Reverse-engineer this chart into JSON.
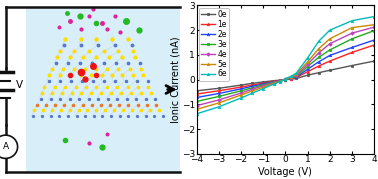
{
  "xlabel": "Voltage (V)",
  "ylabel": "Ionic Current (nA)",
  "xlim": [
    -4,
    4
  ],
  "ylim": [
    -3,
    3
  ],
  "xticks": [
    -4,
    -3,
    -2,
    -1,
    0,
    1,
    2,
    3,
    4
  ],
  "yticks": [
    -3,
    -2,
    -1,
    0,
    1,
    2,
    3
  ],
  "voltage": [
    -4,
    -3,
    -2,
    -1.5,
    -1,
    -0.5,
    -0.25,
    0,
    0.25,
    0.5,
    1,
    1.5,
    2,
    3,
    4
  ],
  "series": {
    "0e": {
      "color": "#555555",
      "marker": "o",
      "values": [
        -0.45,
        -0.35,
        -0.22,
        -0.15,
        -0.09,
        -0.04,
        -0.02,
        0.0,
        0.02,
        0.05,
        0.18,
        0.28,
        0.38,
        0.57,
        0.75
      ]
    },
    "1e": {
      "color": "#ff2222",
      "marker": "^",
      "values": [
        -0.58,
        -0.45,
        -0.3,
        -0.22,
        -0.14,
        -0.06,
        -0.03,
        0.0,
        0.04,
        0.09,
        0.32,
        0.55,
        0.75,
        1.1,
        1.4
      ]
    },
    "2e": {
      "color": "#2244ff",
      "marker": "^",
      "values": [
        -0.72,
        -0.56,
        -0.37,
        -0.27,
        -0.17,
        -0.08,
        -0.04,
        0.0,
        0.05,
        0.11,
        0.42,
        0.72,
        0.98,
        1.3,
        1.6
      ]
    },
    "3e": {
      "color": "#22aa22",
      "marker": "s",
      "values": [
        -0.88,
        -0.68,
        -0.45,
        -0.33,
        -0.21,
        -0.1,
        -0.05,
        0.0,
        0.06,
        0.14,
        0.53,
        0.9,
        1.2,
        1.65,
        1.98
      ]
    },
    "4e": {
      "color": "#bb44bb",
      "marker": "D",
      "values": [
        -1.05,
        -0.82,
        -0.54,
        -0.39,
        -0.25,
        -0.12,
        -0.06,
        0.02,
        0.08,
        0.18,
        0.62,
        1.08,
        1.45,
        1.88,
        2.12
      ]
    },
    "5e": {
      "color": "#cc8800",
      "marker": "^",
      "values": [
        -1.2,
        -0.94,
        -0.62,
        -0.46,
        -0.3,
        -0.14,
        -0.07,
        0.03,
        0.1,
        0.22,
        0.72,
        1.25,
        1.65,
        2.1,
        2.22
      ]
    },
    "6e": {
      "color": "#00bbbb",
      "marker": "^",
      "values": [
        -1.38,
        -1.1,
        -0.74,
        -0.55,
        -0.36,
        -0.17,
        -0.08,
        0.04,
        0.13,
        0.27,
        0.88,
        1.55,
        2.0,
        2.38,
        2.55
      ]
    }
  },
  "bg_color": "#daeef8",
  "wire_color": "#111111",
  "crystal_yellow": "#ffdd00",
  "crystal_blue": "#4466cc",
  "crystal_orange": "#ee7700",
  "ion_pink": "#dd2288",
  "ion_green": "#22bb22",
  "ion_red": "#ee1111"
}
